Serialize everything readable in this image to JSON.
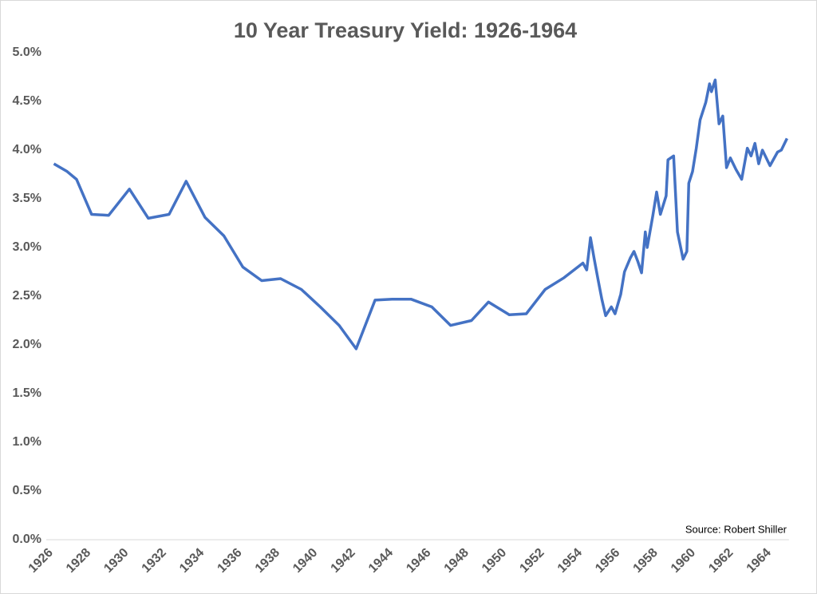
{
  "chart_data": {
    "type": "line",
    "title": "10 Year Treasury Yield: 1926-1964",
    "source": "Source: Robert Shiller",
    "color": "#4472c4",
    "x": [
      1926.4,
      1927.1,
      1927.6,
      1928.4,
      1929.3,
      1930.4,
      1931.4,
      1932.5,
      1933.4,
      1934.4,
      1935.4,
      1936.4,
      1937.4,
      1938.4,
      1939.5,
      1940.5,
      1941.5,
      1942.4,
      1943.4,
      1944.3,
      1945.3,
      1946.4,
      1947.4,
      1948.5,
      1949.4,
      1950.5,
      1951.4,
      1952.4,
      1953.4,
      1954.4,
      1954.6,
      1954.8,
      1955.0,
      1955.2,
      1955.4,
      1955.6,
      1955.9,
      1956.1,
      1956.4,
      1956.6,
      1956.9,
      1957.1,
      1957.3,
      1957.5,
      1957.7,
      1957.8,
      1958.1,
      1958.3,
      1958.5,
      1958.8,
      1958.9,
      1959.2,
      1959.4,
      1959.7,
      1959.9,
      1960.0,
      1960.2,
      1960.4,
      1960.6,
      1960.9,
      1961.1,
      1961.2,
      1961.4,
      1961.6,
      1961.8,
      1962.0,
      1962.2,
      1962.5,
      1962.8,
      1963.1,
      1963.3,
      1963.5,
      1963.7,
      1963.9,
      1964.3,
      1964.7,
      1964.9,
      1965.2
    ],
    "values": [
      3.86,
      3.78,
      3.7,
      3.34,
      3.33,
      3.6,
      3.3,
      3.34,
      3.68,
      3.31,
      3.12,
      2.8,
      2.66,
      2.68,
      2.57,
      2.39,
      2.2,
      1.96,
      2.46,
      2.47,
      2.47,
      2.39,
      2.2,
      2.25,
      2.44,
      2.31,
      2.32,
      2.57,
      2.69,
      2.84,
      2.77,
      3.1,
      2.88,
      2.67,
      2.47,
      2.3,
      2.39,
      2.32,
      2.52,
      2.75,
      2.89,
      2.96,
      2.86,
      2.74,
      3.16,
      3.0,
      3.33,
      3.57,
      3.34,
      3.53,
      3.9,
      3.94,
      3.16,
      2.88,
      2.96,
      3.66,
      3.78,
      4.02,
      4.31,
      4.49,
      4.68,
      4.6,
      4.72,
      4.27,
      4.35,
      3.82,
      3.92,
      3.8,
      3.7,
      4.02,
      3.94,
      4.07,
      3.86,
      4.0,
      3.84,
      3.98,
      4.0,
      4.12
    ],
    "xlim": [
      1926,
      1965.3
    ],
    "xticks": [
      1926,
      1928,
      1930,
      1932,
      1934,
      1936,
      1938,
      1940,
      1942,
      1944,
      1946,
      1948,
      1950,
      1952,
      1954,
      1956,
      1958,
      1960,
      1962,
      1964
    ],
    "ylim": [
      0,
      5
    ],
    "yticks": [
      {
        "value": 0,
        "label": "0.0%"
      },
      {
        "value": 0.5,
        "label": "0.5%"
      },
      {
        "value": 1,
        "label": "1.0%"
      },
      {
        "value": 1.5,
        "label": "1.5%"
      },
      {
        "value": 2,
        "label": "2.0%"
      },
      {
        "value": 2.5,
        "label": "2.5%"
      },
      {
        "value": 3,
        "label": "3.0%"
      },
      {
        "value": 3.5,
        "label": "3.5%"
      },
      {
        "value": 4,
        "label": "4.0%"
      },
      {
        "value": 4.5,
        "label": "4.5%"
      },
      {
        "value": 5,
        "label": "5.0%"
      }
    ]
  }
}
